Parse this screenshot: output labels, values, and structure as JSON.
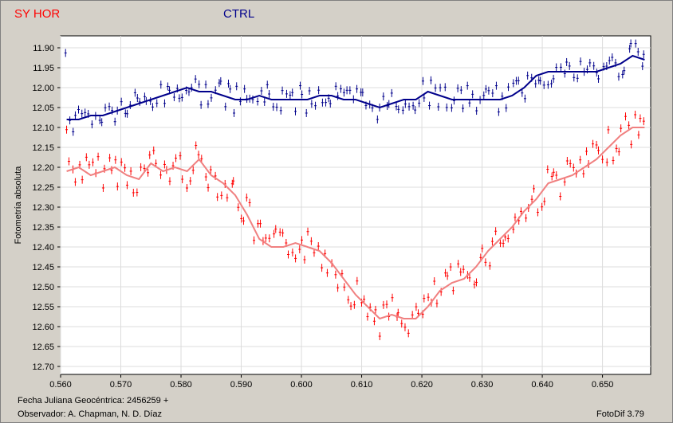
{
  "legend": {
    "series1_label": "SY HOR",
    "series2_label": "CTRL",
    "series1_color": "#ff0000",
    "series2_color": "#00008b"
  },
  "footer": {
    "date_label": "Fecha Juliana Geocéntrica: 2456259 +",
    "observer_label": "Observador: A. Chapman, N. D. Díaz",
    "software_label": "FotoDif 3.79"
  },
  "chart_data": {
    "type": "scatter",
    "ylabel": "Fotometría absoluta",
    "xlabel": "Fecha Juliana Geocéntrica: 2456259 +",
    "xlim": [
      0.56,
      0.658
    ],
    "ylim": [
      12.72,
      11.87
    ],
    "y_inverted": true,
    "grid": true,
    "x_ticks": [
      "0.560",
      "0.570",
      "0.580",
      "0.590",
      "0.600",
      "0.610",
      "0.620",
      "0.630",
      "0.640",
      "0.650"
    ],
    "y_ticks": [
      "11.90",
      "11.95",
      "12.00",
      "12.05",
      "12.10",
      "12.15",
      "12.20",
      "12.25",
      "12.30",
      "12.35",
      "12.40",
      "12.45",
      "12.50",
      "12.55",
      "12.60",
      "12.65",
      "12.70"
    ],
    "series": [
      {
        "name": "SY HOR",
        "color": "#ff0000",
        "smooth_color": "#f08080",
        "x": [
          0.561,
          0.563,
          0.565,
          0.567,
          0.569,
          0.571,
          0.573,
          0.575,
          0.577,
          0.579,
          0.581,
          0.583,
          0.585,
          0.587,
          0.589,
          0.591,
          0.593,
          0.595,
          0.597,
          0.599,
          0.601,
          0.603,
          0.605,
          0.607,
          0.609,
          0.611,
          0.613,
          0.615,
          0.617,
          0.619,
          0.621,
          0.623,
          0.625,
          0.627,
          0.629,
          0.631,
          0.633,
          0.635,
          0.637,
          0.639,
          0.641,
          0.643,
          0.645,
          0.647,
          0.649,
          0.651,
          0.653,
          0.655,
          0.657
        ],
        "y": [
          12.21,
          12.2,
          12.22,
          12.21,
          12.2,
          12.22,
          12.23,
          12.19,
          12.21,
          12.2,
          12.21,
          12.18,
          12.22,
          12.24,
          12.27,
          12.32,
          12.38,
          12.4,
          12.4,
          12.39,
          12.4,
          12.41,
          12.44,
          12.48,
          12.52,
          12.55,
          12.58,
          12.57,
          12.58,
          12.58,
          12.55,
          12.51,
          12.49,
          12.48,
          12.45,
          12.41,
          12.38,
          12.35,
          12.31,
          12.28,
          12.24,
          12.23,
          12.22,
          12.2,
          12.18,
          12.15,
          12.12,
          12.1,
          12.1
        ]
      },
      {
        "name": "CTRL",
        "color": "#00008b",
        "smooth_color": "#00008b",
        "x": [
          0.561,
          0.563,
          0.565,
          0.567,
          0.569,
          0.571,
          0.573,
          0.575,
          0.577,
          0.579,
          0.581,
          0.583,
          0.585,
          0.587,
          0.589,
          0.591,
          0.593,
          0.595,
          0.597,
          0.599,
          0.601,
          0.603,
          0.605,
          0.607,
          0.609,
          0.611,
          0.613,
          0.615,
          0.617,
          0.619,
          0.621,
          0.623,
          0.625,
          0.627,
          0.629,
          0.631,
          0.633,
          0.635,
          0.637,
          0.639,
          0.641,
          0.643,
          0.645,
          0.647,
          0.649,
          0.651,
          0.653,
          0.655,
          0.657
        ],
        "y": [
          12.08,
          12.08,
          12.07,
          12.07,
          12.06,
          12.05,
          12.04,
          12.03,
          12.02,
          12.01,
          12.0,
          12.01,
          12.01,
          12.02,
          12.03,
          12.03,
          12.02,
          12.03,
          12.03,
          12.03,
          12.03,
          12.02,
          12.02,
          12.03,
          12.03,
          12.04,
          12.05,
          12.04,
          12.03,
          12.03,
          12.01,
          12.02,
          12.03,
          12.03,
          12.03,
          12.03,
          12.03,
          12.02,
          12.0,
          11.97,
          11.96,
          11.96,
          11.96,
          11.96,
          11.96,
          11.95,
          11.94,
          11.92,
          11.93
        ]
      }
    ]
  }
}
